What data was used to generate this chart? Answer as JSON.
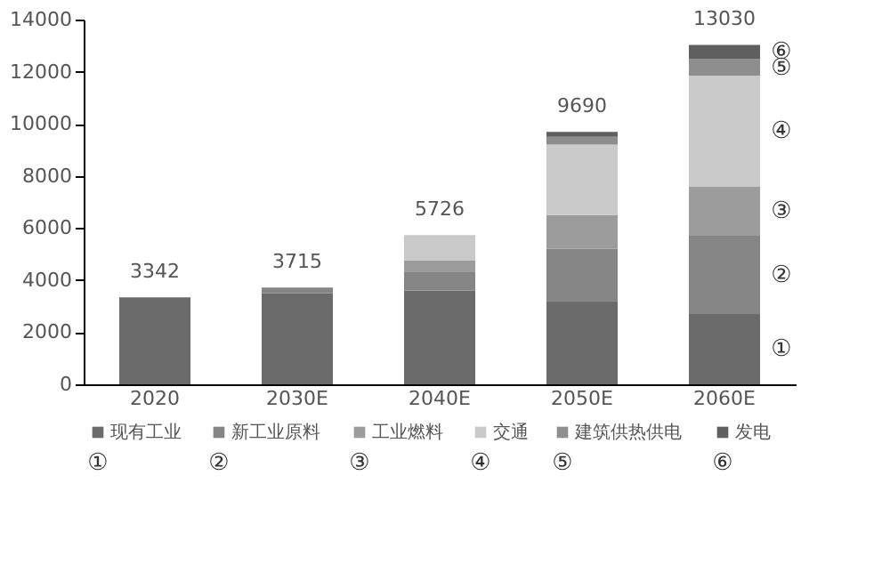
{
  "chart_data": {
    "type": "bar",
    "stacked": true,
    "categories": [
      "2020",
      "2030E",
      "2040E",
      "2050E",
      "2060E"
    ],
    "series": [
      {
        "name": "现有工业",
        "color": "#6b6b6b",
        "values": [
          3342,
          3500,
          3600,
          3200,
          2700
        ]
      },
      {
        "name": "新工业原料",
        "color": "#858585",
        "values": [
          0,
          215,
          700,
          2000,
          3000
        ]
      },
      {
        "name": "工业燃料",
        "color": "#9c9c9c",
        "values": [
          0,
          0,
          450,
          1300,
          1900
        ]
      },
      {
        "name": "交通",
        "color": "#cacaca",
        "values": [
          0,
          0,
          976,
          2700,
          4250
        ]
      },
      {
        "name": "建筑供热供电",
        "color": "#8e8e8e",
        "values": [
          0,
          0,
          0,
          300,
          630
        ]
      },
      {
        "name": "发电",
        "color": "#5f5f5f",
        "values": [
          0,
          0,
          0,
          190,
          550
        ]
      }
    ],
    "totals": [
      "3342",
      "3715",
      "5726",
      "9690",
      "13030"
    ],
    "ylim": [
      0,
      14000
    ],
    "yticks": [
      0,
      2000,
      4000,
      6000,
      8000,
      10000,
      12000,
      14000
    ],
    "grid": false,
    "legend": "bottom",
    "annotations": [
      "①",
      "②",
      "③",
      "④",
      "⑤",
      "⑥",
      "①",
      "②",
      "③",
      "④",
      "⑤",
      "⑥"
    ]
  }
}
